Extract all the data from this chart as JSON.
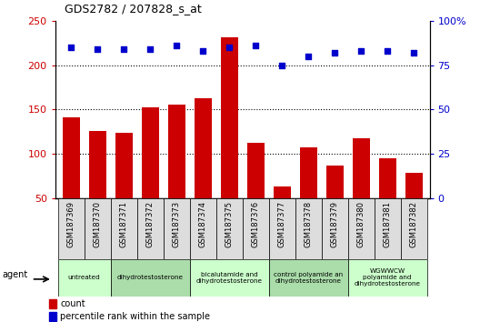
{
  "title": "GDS2782 / 207828_s_at",
  "samples": [
    "GSM187369",
    "GSM187370",
    "GSM187371",
    "GSM187372",
    "GSM187373",
    "GSM187374",
    "GSM187375",
    "GSM187376",
    "GSM187377",
    "GSM187378",
    "GSM187379",
    "GSM187380",
    "GSM187381",
    "GSM187382"
  ],
  "counts": [
    141,
    126,
    124,
    152,
    156,
    163,
    232,
    112,
    63,
    107,
    87,
    118,
    95,
    78
  ],
  "percentile_ranks": [
    85,
    84,
    84,
    84,
    86,
    83,
    85,
    86,
    75,
    80,
    82,
    83,
    83,
    82
  ],
  "bar_color": "#cc0000",
  "dot_color": "#0000cc",
  "ylim_left": [
    50,
    250
  ],
  "ylim_right": [
    0,
    100
  ],
  "yticks_left": [
    50,
    100,
    150,
    200,
    250
  ],
  "yticks_right": [
    0,
    25,
    50,
    75,
    100
  ],
  "yticklabels_right": [
    "0",
    "25",
    "50",
    "75",
    "100%"
  ],
  "agent_groups": [
    {
      "label": "untreated",
      "indices": [
        0,
        1
      ],
      "color": "#ccffcc"
    },
    {
      "label": "dihydrotestosterone",
      "indices": [
        2,
        3,
        4
      ],
      "color": "#aaddaa"
    },
    {
      "label": "bicalutamide and\ndihydrotestosterone",
      "indices": [
        5,
        6,
        7
      ],
      "color": "#ccffcc"
    },
    {
      "label": "control polyamide an\ndihydrotestosterone",
      "indices": [
        8,
        9,
        10
      ],
      "color": "#aaddaa"
    },
    {
      "label": "WGWWCW\npolyamide and\ndihydrotestosterone",
      "indices": [
        11,
        12,
        13
      ],
      "color": "#ccffcc"
    }
  ],
  "legend_count_label": "count",
  "legend_percentile_label": "percentile rank within the sample",
  "agent_label": "agent",
  "dotted_lines": [
    100,
    150,
    200
  ],
  "tick_label_color": "#cccccc",
  "tick_box_color": "#dddddd"
}
